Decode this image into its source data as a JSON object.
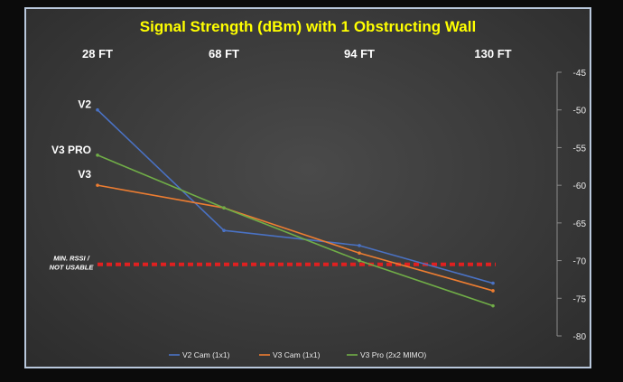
{
  "chart_data": {
    "type": "line",
    "title": "Signal Strength (dBm) with 1 Obstructing Wall",
    "categories": [
      "28 FT",
      "68 FT",
      "94 FT",
      "130 FT"
    ],
    "ylim": [
      -80,
      -45
    ],
    "yticks": [
      -45,
      -50,
      -55,
      -60,
      -65,
      -70,
      -75,
      -80
    ],
    "y_axis_side": "right",
    "x_labels_position": "top",
    "series": [
      {
        "name": "V2 Cam (1x1)",
        "color": "#4a72c4",
        "values": [
          -50,
          -66,
          -68,
          -73
        ]
      },
      {
        "name": "V3 Cam (1x1)",
        "color": "#ed7d31",
        "values": [
          -60,
          -63,
          -69,
          -74
        ]
      },
      {
        "name": "V3 Pro (2x2 MIMO)",
        "color": "#70ad47",
        "values": [
          -56,
          -63,
          -70,
          -76
        ]
      }
    ],
    "start_labels": [
      "V2",
      "V3 PRO",
      "V3"
    ],
    "threshold": {
      "value": -70.5,
      "label": "MIN. RSSI / NOT USABLE",
      "color": "#e02020",
      "style": "dashed"
    },
    "legend": "bottom-center",
    "grid": false
  }
}
